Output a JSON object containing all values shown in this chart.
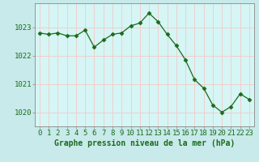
{
  "x": [
    0,
    1,
    2,
    3,
    4,
    5,
    6,
    7,
    8,
    9,
    10,
    11,
    12,
    13,
    14,
    15,
    16,
    17,
    18,
    19,
    20,
    21,
    22,
    23
  ],
  "y": [
    1022.8,
    1022.75,
    1022.8,
    1022.7,
    1022.7,
    1022.9,
    1022.3,
    1022.55,
    1022.75,
    1022.8,
    1023.05,
    1023.15,
    1023.5,
    1023.2,
    1022.75,
    1022.35,
    1021.85,
    1021.15,
    1020.85,
    1020.25,
    1020.0,
    1020.2,
    1020.65,
    1020.45
  ],
  "line_color": "#1a6b1a",
  "marker": "D",
  "marker_size": 2.5,
  "bg_color": "#c8eaea",
  "plot_bg_color": "#d6f5f5",
  "grid_color": "#f5c8c8",
  "xlabel": "Graphe pression niveau de la mer (hPa)",
  "xlabel_color": "#1a6b1a",
  "tick_color": "#1a6b1a",
  "axis_color": "#888888",
  "ylim": [
    1019.5,
    1023.85
  ],
  "yticks": [
    1020,
    1021,
    1022,
    1023
  ],
  "xlim": [
    -0.5,
    23.5
  ],
  "xticks": [
    0,
    1,
    2,
    3,
    4,
    5,
    6,
    7,
    8,
    9,
    10,
    11,
    12,
    13,
    14,
    15,
    16,
    17,
    18,
    19,
    20,
    21,
    22,
    23
  ],
  "label_fontsize": 7,
  "tick_fontsize": 6.5
}
